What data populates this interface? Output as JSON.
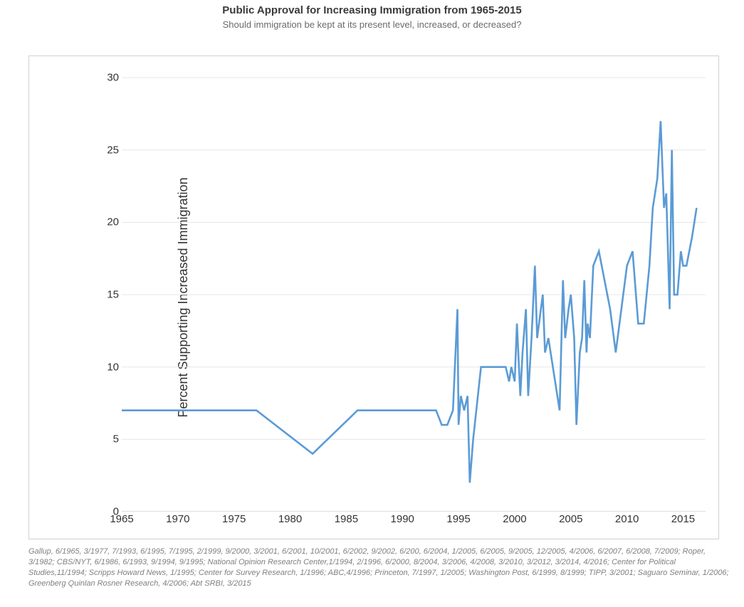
{
  "header": {
    "title": "Public Approval for Increasing Immigration from 1965-2015",
    "subtitle": "Should immigration be kept at its present level, increased, or decreased?"
  },
  "chart": {
    "type": "line",
    "ylabel": "Percent Supporting Increased Immigration",
    "xlim": [
      1965,
      2017
    ],
    "ylim": [
      0,
      30.5
    ],
    "xticks": [
      1965,
      1970,
      1975,
      1980,
      1985,
      1990,
      1995,
      2000,
      2005,
      2010,
      2015
    ],
    "yticks": [
      0,
      5,
      10,
      15,
      20,
      25,
      30
    ],
    "line_color": "#5b9bd5",
    "line_width": 2.6,
    "grid_color": "#e6e6e6",
    "background_color": "#ffffff",
    "border_color": "#d0d0d0",
    "tick_fontsize": 15,
    "label_fontsize": 18,
    "series": {
      "x": [
        1965,
        1977,
        1982,
        1986,
        1993.0,
        1993.5,
        1994.0,
        1994.5,
        1994.9,
        1995.0,
        1995.2,
        1995.5,
        1995.8,
        1996.0,
        1996.3,
        1997.0,
        1997.5,
        1999.2,
        1999.5,
        1999.7,
        2000.0,
        2000.2,
        2000.5,
        2000.7,
        2001.0,
        2001.2,
        2001.5,
        2001.8,
        2002.0,
        2002.5,
        2002.7,
        2003.0,
        2004.0,
        2004.3,
        2004.5,
        2004.8,
        2005.0,
        2005.3,
        2005.5,
        2005.8,
        2006.0,
        2006.2,
        2006.4,
        2006.5,
        2006.7,
        2007.0,
        2007.5,
        2008.0,
        2008.5,
        2009.0,
        2009.5,
        2010.0,
        2010.5,
        2011.0,
        2011.5,
        2012.0,
        2012.3,
        2012.7,
        2013.0,
        2013.3,
        2013.5,
        2013.8,
        2014.0,
        2014.2,
        2014.5,
        2014.8,
        2015.0,
        2015.3,
        2015.8,
        2016.2
      ],
      "y": [
        7,
        7,
        4,
        7,
        7,
        6,
        6,
        7,
        14,
        6,
        8,
        7,
        8,
        2,
        5,
        10,
        10,
        10,
        9,
        10,
        9,
        13,
        8,
        11,
        14,
        8,
        12,
        17,
        12,
        15,
        11,
        12,
        7,
        16,
        12,
        14,
        15,
        12,
        6,
        11,
        12,
        16,
        11,
        13,
        12,
        17,
        18,
        16,
        14,
        11,
        14,
        17,
        18,
        13,
        13,
        17,
        21,
        23,
        27,
        21,
        22,
        14,
        25,
        15,
        15,
        18,
        17,
        17,
        19,
        21
      ]
    }
  },
  "caption": "Gallup, 6/1965, 3/1977, 7/1993, 6/1995, 7/1995, 2/1999, 9/2000, 3/2001, 6/2001, 10/2001, 6/2002, 9/2002, 6/200, 6/2004, 1/2005, 6/2005, 9/2005, 12/2005, 4/2006, 6/2007, 6/2008, 7/2009; Roper, 3/1982; CBS/NYT, 6/1986, 6/1993, 9/1994, 9/1995; National Opinion Research Center,1/1994, 2/1996, 6/2000, 8/2004, 3/2006, 4/2008, 3/2010, 3/2012, 3/2014, 4/2016; Center for Political Studies,11/1994; Scripps Howard News, 1/1995; Center for Survey Research, 1/1996; ABC,4/1996; Princeton, 7/1997, 1/2005; Washington Post, 6/1999, 8/1999; TIPP, 3/2001; Saguaro Seminar, 1/2006; Greenberg Quinlan Rosner Research, 4/2006; Abt SRBI, 3/2015"
}
